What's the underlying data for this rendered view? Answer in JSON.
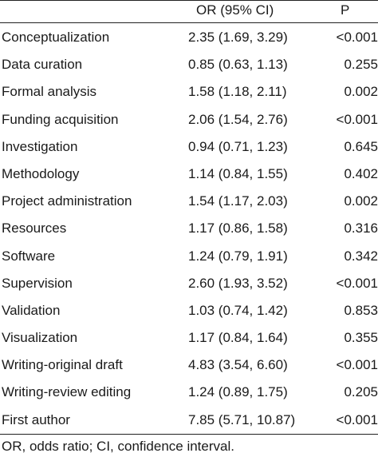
{
  "table": {
    "headers": {
      "label": "",
      "or": "OR (95% CI)",
      "p": "P"
    },
    "rows": [
      {
        "label": "Conceptualization",
        "or": "2.35 (1.69, 3.29)",
        "p": "<0.001"
      },
      {
        "label": "Data curation",
        "or": "0.85 (0.63, 1.13)",
        "p": "0.255"
      },
      {
        "label": "Formal analysis",
        "or": "1.58 (1.18, 2.11)",
        "p": "0.002"
      },
      {
        "label": "Funding acquisition",
        "or": "2.06 (1.54, 2.76)",
        "p": "<0.001"
      },
      {
        "label": "Investigation",
        "or": "0.94 (0.71, 1.23)",
        "p": "0.645"
      },
      {
        "label": "Methodology",
        "or": "1.14 (0.84, 1.55)",
        "p": "0.402"
      },
      {
        "label": "Project administration",
        "or": "1.54 (1.17, 2.03)",
        "p": "0.002"
      },
      {
        "label": "Resources",
        "or": "1.17 (0.86, 1.58)",
        "p": "0.316"
      },
      {
        "label": "Software",
        "or": "1.24 (0.79, 1.91)",
        "p": "0.342"
      },
      {
        "label": "Supervision",
        "or": "2.60 (1.93, 3.52)",
        "p": "<0.001"
      },
      {
        "label": "Validation",
        "or": "1.03 (0.74, 1.42)",
        "p": "0.853"
      },
      {
        "label": "Visualization",
        "or": "1.17 (0.84, 1.64)",
        "p": "0.355"
      },
      {
        "label": "Writing-original draft",
        "or": "4.83 (3.54, 6.60)",
        "p": "<0.001"
      },
      {
        "label": "Writing-review editing",
        "or": "1.24 (0.89, 1.75)",
        "p": "0.205"
      },
      {
        "label": "First author",
        "or": "7.85 (5.71, 10.87)",
        "p": "<0.001"
      }
    ],
    "footnote": "OR, odds ratio; CI, confidence interval."
  }
}
